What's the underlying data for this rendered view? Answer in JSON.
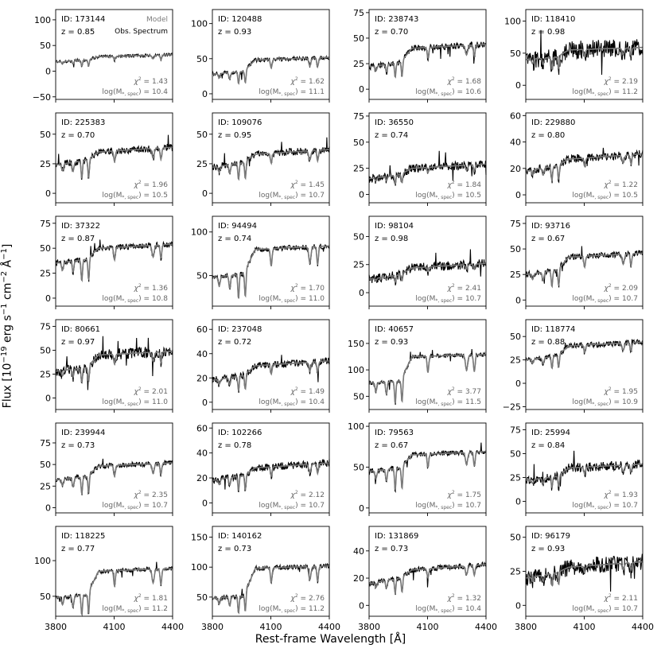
{
  "figure": {
    "ylabel_prefix": "Flux [10",
    "ylabel_exp1": "−19",
    "ylabel_mid1": " erg s",
    "ylabel_exp2": "−1",
    "ylabel_mid2": " cm",
    "ylabel_exp3": "−2",
    "ylabel_mid3": " Å",
    "ylabel_exp4": "−1",
    "ylabel_suffix": "]",
    "xlabel": "Rest-frame Wavelength [Å]",
    "legend": {
      "model": "Model",
      "observed": "Obs. Spectrum"
    },
    "colors": {
      "model": "#7a7a7a",
      "observed": "#000000",
      "annotation": "#666666"
    }
  },
  "chart_data": [
    {
      "type": "line",
      "id": "173144",
      "z": "0.85",
      "chi2": "1.43",
      "logm": "10.4",
      "xlim": [
        3800,
        4400
      ],
      "ylim": [
        -55,
        120
      ],
      "yticks": [
        -50,
        0,
        50,
        100
      ],
      "base": 18,
      "level": 28,
      "depth": 1.0,
      "noise": 3
    },
    {
      "type": "line",
      "id": "120488",
      "z": "0.93",
      "chi2": "1.62",
      "logm": "11.1",
      "xlim": [
        3800,
        4400
      ],
      "ylim": [
        -8,
        120
      ],
      "yticks": [
        0,
        50,
        100
      ],
      "base": 28,
      "level": 48,
      "depth": 1.0,
      "noise": 3
    },
    {
      "type": "line",
      "id": "238743",
      "z": "0.70",
      "chi2": "1.68",
      "logm": "10.6",
      "xlim": [
        3800,
        4400
      ],
      "ylim": [
        -10,
        78
      ],
      "yticks": [
        0,
        25,
        50,
        75
      ],
      "base": 22,
      "level": 40,
      "depth": 1.0,
      "noise": 3
    },
    {
      "type": "line",
      "id": "118410",
      "z": "0.98",
      "chi2": "2.19",
      "logm": "11.2",
      "xlim": [
        3800,
        4400
      ],
      "ylim": [
        -22,
        118
      ],
      "yticks": [
        0,
        50,
        100
      ],
      "base": 40,
      "level": 55,
      "depth": 0.8,
      "noise": 14
    },
    {
      "type": "line",
      "id": "225383",
      "z": "0.70",
      "chi2": "1.96",
      "logm": "10.5",
      "xlim": [
        3800,
        4400
      ],
      "ylim": [
        -8,
        68
      ],
      "yticks": [
        0,
        25,
        50
      ],
      "base": 24,
      "level": 35,
      "depth": 1.0,
      "noise": 3
    },
    {
      "type": "line",
      "id": "109076",
      "z": "0.95",
      "chi2": "1.45",
      "logm": "10.7",
      "xlim": [
        3800,
        4400
      ],
      "ylim": [
        -8,
        68
      ],
      "yticks": [
        0,
        25,
        50
      ],
      "base": 22,
      "level": 33,
      "depth": 1.0,
      "noise": 3
    },
    {
      "type": "line",
      "id": "36550",
      "z": "0.74",
      "chi2": "1.84",
      "logm": "10.5",
      "xlim": [
        3800,
        4400
      ],
      "ylim": [
        -8,
        78
      ],
      "yticks": [
        0,
        25,
        50,
        75
      ],
      "base": 15,
      "level": 25,
      "depth": 0.8,
      "noise": 4
    },
    {
      "type": "line",
      "id": "229880",
      "z": "0.80",
      "chi2": "1.22",
      "logm": "10.5",
      "xlim": [
        3800,
        4400
      ],
      "ylim": [
        -6,
        62
      ],
      "yticks": [
        0,
        20,
        40,
        60
      ],
      "base": 18,
      "level": 27,
      "depth": 0.9,
      "noise": 3
    },
    {
      "type": "line",
      "id": "37322",
      "z": "0.87",
      "chi2": "1.36",
      "logm": "10.8",
      "xlim": [
        3800,
        4400
      ],
      "ylim": [
        -8,
        82
      ],
      "yticks": [
        0,
        25,
        50,
        75
      ],
      "base": 35,
      "level": 50,
      "depth": 1.0,
      "noise": 3
    },
    {
      "type": "line",
      "id": "94494",
      "z": "0.74",
      "chi2": "1.70",
      "logm": "11.0",
      "xlim": [
        3800,
        4400
      ],
      "ylim": [
        15,
        118
      ],
      "yticks": [
        50,
        100
      ],
      "base": 48,
      "level": 80,
      "depth": 1.0,
      "noise": 3
    },
    {
      "type": "line",
      "id": "98104",
      "z": "0.98",
      "chi2": "2.41",
      "logm": "10.7",
      "xlim": [
        3800,
        4400
      ],
      "ylim": [
        -12,
        68
      ],
      "yticks": [
        0,
        25,
        50
      ],
      "base": 12,
      "level": 22,
      "depth": 0.7,
      "noise": 4
    },
    {
      "type": "line",
      "id": "93716",
      "z": "0.67",
      "chi2": "2.09",
      "logm": "10.7",
      "xlim": [
        3800,
        4400
      ],
      "ylim": [
        -6,
        82
      ],
      "yticks": [
        0,
        25,
        50,
        75
      ],
      "base": 25,
      "level": 42,
      "depth": 1.0,
      "noise": 3
    },
    {
      "type": "line",
      "id": "80661",
      "z": "0.97",
      "chi2": "2.01",
      "logm": "11.0",
      "xlim": [
        3800,
        4400
      ],
      "ylim": [
        -12,
        82
      ],
      "yticks": [
        0,
        25,
        50,
        75
      ],
      "base": 28,
      "level": 45,
      "depth": 0.9,
      "noise": 6
    },
    {
      "type": "line",
      "id": "237048",
      "z": "0.72",
      "chi2": "1.49",
      "logm": "10.4",
      "xlim": [
        3800,
        4400
      ],
      "ylim": [
        -6,
        68
      ],
      "yticks": [
        0,
        20,
        40,
        60
      ],
      "base": 18,
      "level": 30,
      "depth": 1.0,
      "noise": 3
    },
    {
      "type": "line",
      "id": "40657",
      "z": "0.93",
      "chi2": "3.77",
      "logm": "11.5",
      "xlim": [
        3800,
        4400
      ],
      "ylim": [
        25,
        195
      ],
      "yticks": [
        50,
        100,
        150
      ],
      "base": 75,
      "level": 125,
      "depth": 1.0,
      "noise": 4
    },
    {
      "type": "line",
      "id": "118774",
      "z": "0.88",
      "chi2": "1.95",
      "logm": "10.9",
      "xlim": [
        3800,
        4400
      ],
      "ylim": [
        -28,
        68
      ],
      "yticks": [
        -25,
        0,
        25,
        50
      ],
      "base": 25,
      "level": 40,
      "depth": 0.8,
      "noise": 3
    },
    {
      "type": "line",
      "id": "239944",
      "z": "0.73",
      "chi2": "2.35",
      "logm": "10.7",
      "xlim": [
        3800,
        4400
      ],
      "ylim": [
        -6,
        98
      ],
      "yticks": [
        0,
        25,
        50,
        75
      ],
      "base": 32,
      "level": 48,
      "depth": 1.0,
      "noise": 3
    },
    {
      "type": "line",
      "id": "102266",
      "z": "0.78",
      "chi2": "2.12",
      "logm": "10.7",
      "xlim": [
        3800,
        4400
      ],
      "ylim": [
        -8,
        64
      ],
      "yticks": [
        0,
        20,
        40,
        60
      ],
      "base": 18,
      "level": 28,
      "depth": 1.0,
      "noise": 3
    },
    {
      "type": "line",
      "id": "79563",
      "z": "0.67",
      "chi2": "1.75",
      "logm": "10.7",
      "xlim": [
        3800,
        4400
      ],
      "ylim": [
        -6,
        104
      ],
      "yticks": [
        0,
        50,
        100
      ],
      "base": 45,
      "level": 65,
      "depth": 1.0,
      "noise": 3
    },
    {
      "type": "line",
      "id": "25994",
      "z": "0.84",
      "chi2": "1.93",
      "logm": "10.7",
      "xlim": [
        3800,
        4400
      ],
      "ylim": [
        -12,
        82
      ],
      "yticks": [
        0,
        25,
        50,
        75
      ],
      "base": 22,
      "level": 35,
      "depth": 0.8,
      "noise": 5
    },
    {
      "type": "line",
      "id": "118225",
      "z": "0.77",
      "chi2": "1.81",
      "logm": "11.2",
      "xlim": [
        3800,
        4400
      ],
      "ylim": [
        22,
        148
      ],
      "yticks": [
        50,
        100
      ],
      "base": 48,
      "level": 85,
      "depth": 1.0,
      "noise": 3
    },
    {
      "type": "line",
      "id": "140162",
      "z": "0.73",
      "chi2": "2.76",
      "logm": "11.2",
      "xlim": [
        3800,
        4400
      ],
      "ylim": [
        18,
        168
      ],
      "yticks": [
        50,
        100,
        150
      ],
      "base": 48,
      "level": 98,
      "depth": 1.0,
      "noise": 4
    },
    {
      "type": "line",
      "id": "131869",
      "z": "0.73",
      "chi2": "1.32",
      "logm": "10.4",
      "xlim": [
        3800,
        4400
      ],
      "ylim": [
        -8,
        58
      ],
      "yticks": [
        0,
        20,
        40
      ],
      "base": 16,
      "level": 26,
      "depth": 1.0,
      "noise": 2
    },
    {
      "type": "line",
      "id": "96179",
      "z": "0.93",
      "chi2": "2.11",
      "logm": "10.7",
      "xlim": [
        3800,
        4400
      ],
      "ylim": [
        -8,
        58
      ],
      "yticks": [
        0,
        25,
        50
      ],
      "base": 20,
      "level": 28,
      "depth": 0.7,
      "noise": 6
    }
  ],
  "xticks": [
    3800,
    4100,
    4400
  ],
  "labels": {
    "id_prefix": "ID: ",
    "z_prefix": "z = ",
    "chi2_suffix": " = ",
    "logm_prefix": "log(M",
    "logm_sub": "*, spec",
    "logm_suffix": ") = "
  }
}
